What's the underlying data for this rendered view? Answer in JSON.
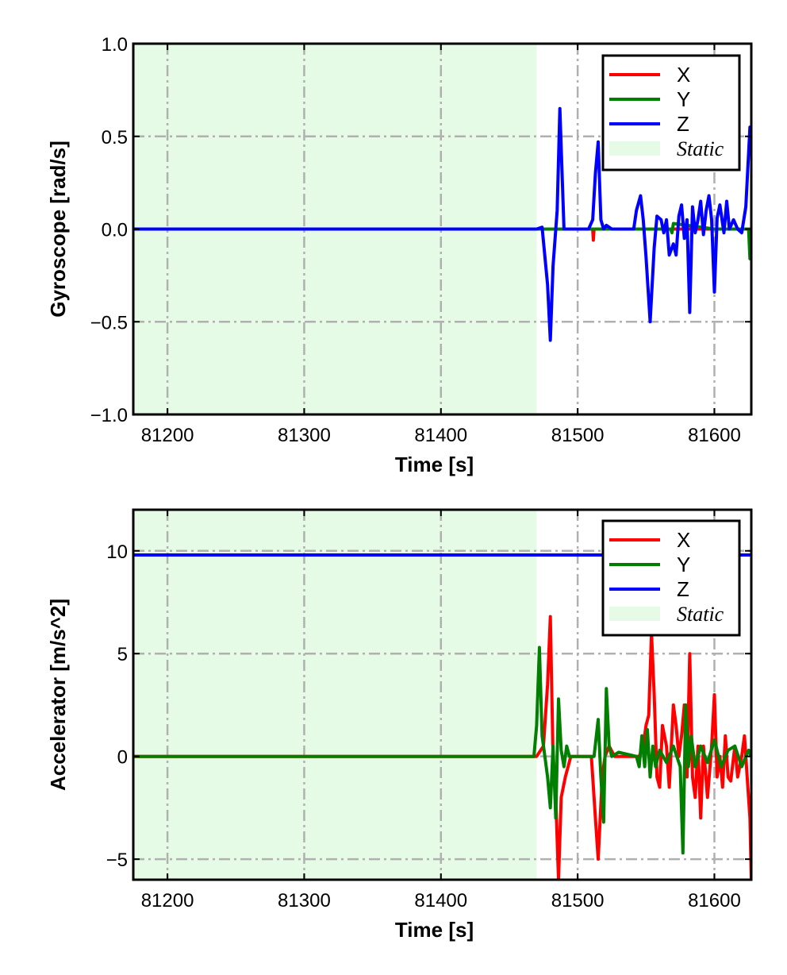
{
  "chart_data": [
    {
      "type": "line",
      "xlabel": "Time [s]",
      "ylabel": "Gyroscope [rad/s]",
      "xlim": [
        81175,
        81627
      ],
      "ylim": [
        -1.0,
        1.0
      ],
      "xticks": [
        81200,
        81300,
        81400,
        81500,
        81600
      ],
      "xtick_labels": [
        "81200",
        "81300",
        "81400",
        "81500",
        "81600"
      ],
      "yticks": [
        -1.0,
        -0.5,
        0.0,
        0.5,
        1.0
      ],
      "ytick_labels": [
        "−1.0",
        "−0.5",
        "0.0",
        "0.5",
        "1.0"
      ],
      "grid": true,
      "legend_position": "top-right",
      "static_region": {
        "label": "Static",
        "x_start": 81175,
        "x_end": 81470,
        "color": "#e6fbe6"
      },
      "series": [
        {
          "name": "X",
          "color": "#ff0000",
          "x": [
            81175,
            81470,
            81511,
            81511.5,
            81512,
            81540,
            81560,
            81600,
            81627
          ],
          "y": [
            0,
            0,
            0,
            -0.06,
            0,
            0,
            0,
            0,
            0
          ]
        },
        {
          "name": "Y",
          "color": "#007f00",
          "x": [
            81175,
            81470,
            81540,
            81568,
            81569,
            81570,
            81600,
            81625,
            81626,
            81627
          ],
          "y": [
            0,
            0,
            0,
            0,
            -0.02,
            0.03,
            0,
            0,
            -0.16,
            -0.16
          ]
        },
        {
          "name": "Z",
          "color": "#0000ff",
          "x": [
            81175,
            81470,
            81474,
            81478,
            81480,
            81482,
            81485,
            81487,
            81490,
            81508,
            81511,
            81513,
            81515,
            81517,
            81519,
            81521,
            81525,
            81541,
            81543,
            81546,
            81548,
            81550,
            81553,
            81556,
            81558,
            81561,
            81563,
            81565,
            81567,
            81570,
            81572,
            81574,
            81576,
            81578,
            81580,
            81582,
            81584,
            81586,
            81588,
            81590,
            81592,
            81594,
            81596,
            81598,
            81600,
            81602,
            81604,
            81607,
            81609,
            81611,
            81614,
            81617,
            81620,
            81623,
            81626,
            81627
          ],
          "y": [
            0,
            0,
            0.01,
            -0.3,
            -0.6,
            -0.2,
            0.1,
            0.65,
            0,
            0,
            0.05,
            0.3,
            0.47,
            0.05,
            0,
            0.02,
            0,
            0,
            0.1,
            0.18,
            0.05,
            -0.15,
            -0.5,
            -0.1,
            0.07,
            0.05,
            -0.02,
            0.05,
            -0.14,
            -0.08,
            -0.14,
            0.07,
            0.13,
            -0.05,
            0.05,
            -0.45,
            0.12,
            -0.02,
            0.05,
            0.15,
            -0.03,
            0.1,
            0.18,
            0.05,
            -0.34,
            0.06,
            0.13,
            -0.02,
            0.15,
            0,
            0.05,
            0,
            -0.02,
            0.12,
            0.55,
            0.55
          ]
        }
      ]
    },
    {
      "type": "line",
      "xlabel": "Time [s]",
      "ylabel": "Accelerator [m/s^2]",
      "xlim": [
        81175,
        81627
      ],
      "ylim": [
        -6,
        12
      ],
      "xticks": [
        81200,
        81300,
        81400,
        81500,
        81600
      ],
      "xtick_labels": [
        "81200",
        "81300",
        "81400",
        "81500",
        "81600"
      ],
      "yticks": [
        -5,
        0,
        5,
        10
      ],
      "ytick_labels": [
        "−5",
        "0",
        "5",
        "10"
      ],
      "grid": true,
      "legend_position": "top-right",
      "static_region": {
        "label": "Static",
        "x_start": 81175,
        "x_end": 81470,
        "color": "#e6fbe6"
      },
      "series": [
        {
          "name": "X",
          "color": "#ff0000",
          "x": [
            81175,
            81470,
            81475,
            81478,
            81480,
            81482,
            81484,
            81486,
            81488,
            81491,
            81495,
            81510,
            81513,
            81515,
            81518,
            81520,
            81523,
            81527,
            81545,
            81548,
            81550,
            81552,
            81554,
            81556,
            81558,
            81560,
            81562,
            81565,
            81567,
            81570,
            81572,
            81574,
            81576,
            81578,
            81580,
            81582,
            81584,
            81586,
            81588,
            81590,
            81592,
            81595,
            81598,
            81600,
            81602,
            81604,
            81606,
            81608,
            81610,
            81612,
            81615,
            81617,
            81620,
            81622,
            81624,
            81626,
            81627
          ],
          "y": [
            0,
            0,
            0.5,
            3.5,
            6.8,
            0,
            -2,
            -6,
            -2,
            -1,
            0,
            0,
            -3,
            -5,
            -1,
            0,
            0.5,
            0,
            0,
            0.5,
            1.5,
            2,
            6,
            3,
            -1,
            -1.5,
            1.5,
            0.5,
            -1.5,
            2.5,
            1.5,
            0,
            1,
            2.5,
            -1,
            5,
            -1,
            -2,
            0.5,
            -3,
            0.5,
            -2,
            0.5,
            3,
            -1,
            0,
            -1.5,
            1,
            -1,
            -1.2,
            0.5,
            -1,
            0,
            1,
            -1,
            -3,
            -6
          ]
        },
        {
          "name": "Y",
          "color": "#007f00",
          "x": [
            81175,
            81468,
            81470,
            81472,
            81474,
            81476,
            81478,
            81480,
            81482,
            81484,
            81486,
            81488,
            81490,
            81492,
            81494,
            81498,
            81512,
            81515,
            81517,
            81519,
            81521,
            81523,
            81525,
            81530,
            81543,
            81545,
            81547,
            81549,
            81551,
            81553,
            81555,
            81557,
            81560,
            81565,
            81570,
            81575,
            81577,
            81579,
            81581,
            81583,
            81586,
            81590,
            81595,
            81600,
            81605,
            81610,
            81615,
            81620,
            81625,
            81627
          ],
          "y": [
            0,
            0,
            1.5,
            5.3,
            1,
            0,
            -1,
            -2.5,
            0.5,
            -3,
            2.8,
            0.3,
            -0.5,
            0.5,
            0,
            0,
            0,
            1.8,
            -1,
            -3.2,
            3.3,
            0.5,
            0,
            0.2,
            0,
            -0.5,
            1,
            -0.5,
            1.3,
            -1,
            0.5,
            -0.5,
            0.3,
            -0.3,
            0.5,
            -0.5,
            -4.7,
            2.5,
            -0.5,
            1,
            -0.5,
            0.5,
            -0.3,
            0.8,
            -0.5,
            0.3,
            0.5,
            -0.5,
            0.3,
            0
          ]
        },
        {
          "name": "Z",
          "color": "#0000ff",
          "x": [
            81175,
            81627
          ],
          "y": [
            9.8,
            9.8
          ]
        }
      ]
    }
  ]
}
